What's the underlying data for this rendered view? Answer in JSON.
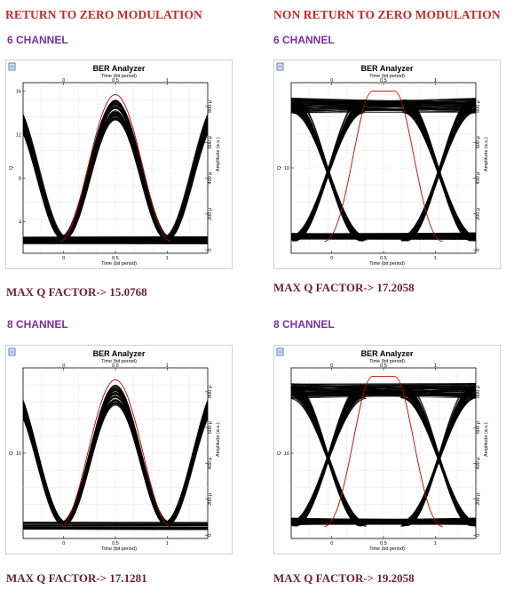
{
  "columns": [
    {
      "heading": "RETURN TO ZERO MODULATION",
      "sections": [
        {
          "channel": "6 CHANNEL",
          "max_q": "MAX Q FACTOR-> 15.0768",
          "plot": {
            "title": "BER Analyzer",
            "top_axis_label": "Time (bit period)",
            "bottom_axis_label": "Time (bit period)",
            "left_axis_label": "Q",
            "right_axis_label": "Amplitude (a.u.)",
            "x_ticks": [
              "0",
              "0.5",
              "1"
            ],
            "left_ticks": [
              "16",
              "12",
              "8",
              "4"
            ],
            "right_ticks": [
              "800 μ",
              "600 μ",
              "400 μ",
              "200 μ",
              "0"
            ]
          }
        },
        {
          "channel": "8 CHANNEL",
          "max_q": "MAX Q FACTOR-> 17.1281",
          "plot": {
            "title": "BER Analyzer",
            "top_axis_label": "Time (bit period)",
            "bottom_axis_label": "Time (bit period)",
            "left_axis_label": "Q",
            "right_axis_label": "Amplitude (a.u.)",
            "x_ticks": [
              "0",
              "0.5",
              "1"
            ],
            "left_ticks": [
              "10"
            ],
            "right_ticks": [
              "800 μ",
              "600 μ",
              "400 μ",
              "200 μ",
              "0"
            ]
          }
        }
      ]
    },
    {
      "heading": "NON RETURN TO ZERO MODULATION",
      "sections": [
        {
          "channel": "6 CHANNEL",
          "max_q": "MAX Q FACTOR-> 17.2058",
          "plot": {
            "title": "BER Analyzer",
            "top_axis_label": "Time (bit period)",
            "bottom_axis_label": "Time (bit period)",
            "left_axis_label": "Q",
            "right_axis_label": "Amplitude (a.u.)",
            "x_ticks": [
              "0",
              "0.5",
              "1"
            ],
            "left_ticks": [
              "10"
            ],
            "right_ticks": [
              "800 μ",
              "600 μ",
              "400 μ",
              "200 μ",
              "0"
            ]
          }
        },
        {
          "channel": "8 CHANNEL",
          "max_q": "MAX Q FACTOR-> 19.2058",
          "plot": {
            "title": "BER Analyzer",
            "top_axis_label": "Time (bit period)",
            "bottom_axis_label": "Time (bit period)",
            "left_axis_label": "Q",
            "right_axis_label": "Amplitude (a.u.)",
            "x_ticks": [
              "0",
              "0.5",
              "1"
            ],
            "left_ticks": [
              "10"
            ],
            "right_ticks": [
              "800 μ",
              "600 μ",
              "400 μ",
              "200 μ",
              "0"
            ]
          }
        }
      ]
    }
  ]
}
